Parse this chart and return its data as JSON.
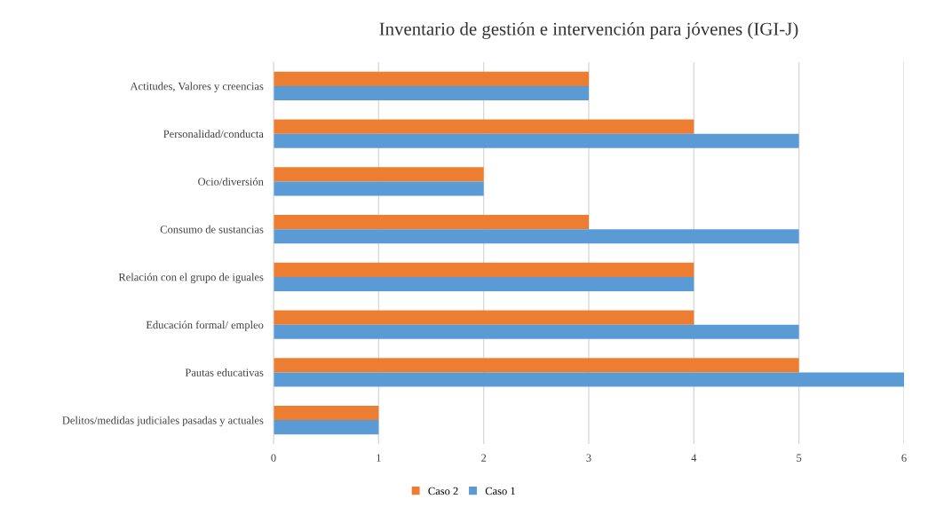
{
  "chart_data": {
    "type": "bar",
    "orientation": "horizontal",
    "title": "Inventario de gestión e intervención para jóvenes (IGI-J)",
    "categories": [
      "Actitudes, Valores y creencias",
      "Personalidad/conducta",
      "Ocio/diversión",
      "Consumo de sustancias",
      "Relación con el grupo de iguales",
      "Educación formal/ empleo",
      "Pautas educativas",
      "Delitos/medidas judiciales pasadas y actuales"
    ],
    "series": [
      {
        "name": "Caso 2",
        "color": "#ed7d31",
        "values": [
          3,
          4,
          2,
          3,
          4,
          4,
          5,
          1
        ]
      },
      {
        "name": "Caso 1",
        "color": "#5b9bd5",
        "values": [
          3,
          5,
          2,
          5,
          4,
          5,
          6,
          1
        ]
      }
    ],
    "xlim": [
      0,
      6
    ],
    "xticks": [
      0,
      1,
      2,
      3,
      4,
      5,
      6
    ],
    "grid": "x",
    "legend": "bottom"
  }
}
